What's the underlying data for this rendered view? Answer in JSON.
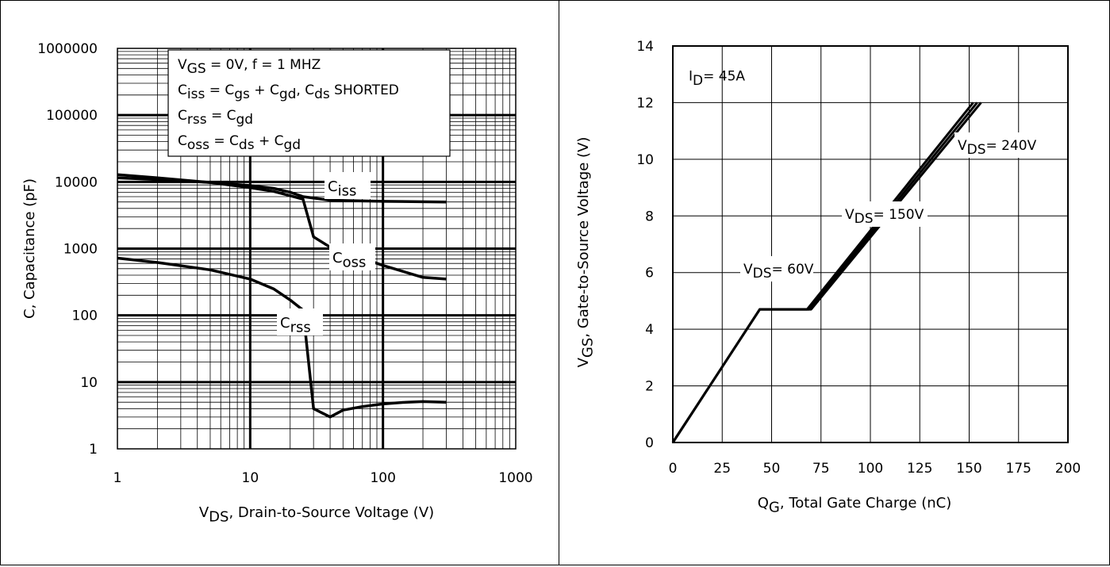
{
  "chart_data": [
    {
      "type": "line",
      "xscale": "log",
      "yscale": "log",
      "xlim": [
        1,
        1000
      ],
      "ylim": [
        1,
        1000000
      ],
      "xticks": [
        "1",
        "10",
        "100",
        "1000"
      ],
      "yticks": [
        "1",
        "10",
        "100",
        "1000",
        "10000",
        "100000",
        "1000000"
      ],
      "xlabel": {
        "main": "V",
        "sub": "DS",
        "rest": ", Drain-to-Source Voltage (V)"
      },
      "ylabel": "C, Capacitance (pF)",
      "grid": true,
      "legend_box": {
        "line1": {
          "p1": "V",
          "s1": "GS",
          "p2": " = 0V,     f = 1 MHZ"
        },
        "line2": {
          "p1": "C",
          "s1": "iss",
          "p2": " = C",
          "s2": "gs",
          "p3": " + C",
          "s3": "gd",
          "p4": ",  C",
          "s4": "ds",
          "p5": " SHORTED"
        },
        "line3": {
          "p1": "C",
          "s1": "rss",
          "p2": "  = C",
          "s2": "gd"
        },
        "line4": {
          "p1": "C",
          "s1": "oss",
          "p2": "  = C",
          "s2": "ds",
          "p3": " + C",
          "s3": "gd"
        }
      },
      "series": [
        {
          "name": "Ciss",
          "label_main": "C",
          "label_sub": "iss",
          "x": [
            1,
            2,
            5,
            10,
            15,
            20,
            25,
            40,
            100,
            300
          ],
          "y": [
            11500,
            10800,
            9800,
            8800,
            8000,
            7000,
            6000,
            5300,
            5100,
            5000
          ]
        },
        {
          "name": "Coss",
          "label_main": "C",
          "label_sub": "oss",
          "x": [
            1,
            2,
            5,
            10,
            15,
            20,
            25,
            30,
            40,
            100,
            200,
            300
          ],
          "y": [
            12800,
            11500,
            9800,
            8200,
            7200,
            6200,
            5500,
            1500,
            1050,
            560,
            370,
            350
          ]
        },
        {
          "name": "Crss",
          "label_main": "C",
          "label_sub": "rss",
          "x": [
            1,
            2,
            5,
            10,
            15,
            20,
            25,
            30,
            40,
            50,
            70,
            100,
            150,
            200,
            300
          ],
          "y": [
            720,
            620,
            480,
            350,
            250,
            170,
            120,
            4.0,
            3.0,
            3.8,
            4.3,
            4.7,
            5.0,
            5.1,
            5.0
          ]
        }
      ]
    },
    {
      "type": "line",
      "xlim": [
        0,
        200
      ],
      "ylim": [
        0,
        14
      ],
      "xticks": [
        "0",
        "25",
        "50",
        "75",
        "100",
        "125",
        "150",
        "175",
        "200"
      ],
      "yticks": [
        "0",
        "2",
        "4",
        "6",
        "8",
        "10",
        "12",
        "14"
      ],
      "xlabel": {
        "main": "Q",
        "sub": "G",
        "rest": ",  Total Gate Charge (nC)"
      },
      "ylabel": {
        "main": "V",
        "sub": "GS",
        "rest": ", Gate-to-Source Voltage (V)"
      },
      "grid": true,
      "condition": {
        "main": "I",
        "sub": "D",
        "rest": "= 45A"
      },
      "series": [
        {
          "name": "VDS= 60V",
          "label_main": "V",
          "label_sub": "DS",
          "label_rest": "= 60V",
          "x": [
            0,
            44,
            68,
            152
          ],
          "y": [
            0,
            4.7,
            4.7,
            12
          ]
        },
        {
          "name": "VDS= 150V",
          "label_main": "V",
          "label_sub": "DS",
          "label_rest": "= 150V",
          "x": [
            0,
            44,
            69,
            154
          ],
          "y": [
            0,
            4.7,
            4.7,
            12
          ]
        },
        {
          "name": "VDS= 240V",
          "label_main": "V",
          "label_sub": "DS",
          "label_rest": "= 240V",
          "x": [
            0,
            44,
            70,
            156
          ],
          "y": [
            0,
            4.7,
            4.7,
            12
          ]
        }
      ]
    }
  ]
}
